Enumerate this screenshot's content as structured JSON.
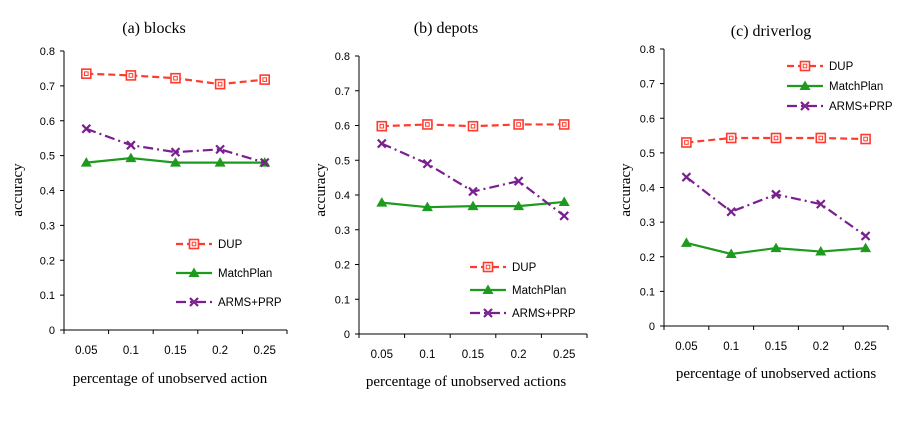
{
  "colors": {
    "DUP": "#ff3b2f",
    "MatchPlan": "#1e9a1e",
    "ARMS+PRP": "#7a1f8f",
    "axis": "#000000"
  },
  "chart_data": [
    {
      "type": "line",
      "title": "(a) blocks",
      "xlabel": "percentage of unobserved action",
      "ylabel": "accuracy",
      "categories": [
        "0.05",
        "0.1",
        "0.15",
        "0.2",
        "0.25"
      ],
      "ylim": [
        0,
        0.8
      ],
      "yticks": [
        "0",
        "0.1",
        "0.2",
        "0.3",
        "0.4",
        "0.5",
        "0.6",
        "0.7",
        "0.8"
      ],
      "legend_position": "bottom-right",
      "series": [
        {
          "name": "DUP",
          "values": [
            0.735,
            0.73,
            0.722,
            0.705,
            0.718
          ]
        },
        {
          "name": "MatchPlan",
          "values": [
            0.48,
            0.493,
            0.48,
            0.48,
            0.48
          ]
        },
        {
          "name": "ARMS+PRP",
          "values": [
            0.577,
            0.53,
            0.51,
            0.518,
            0.48
          ]
        }
      ]
    },
    {
      "type": "line",
      "title": "(b) depots",
      "xlabel": "percentage of unobserved actions",
      "ylabel": "accuracy",
      "categories": [
        "0.05",
        "0.1",
        "0.15",
        "0.2",
        "0.25"
      ],
      "ylim": [
        0,
        0.8
      ],
      "yticks": [
        "0",
        "0.1",
        "0.2",
        "0.3",
        "0.4",
        "0.5",
        "0.6",
        "0.7",
        "0.8"
      ],
      "legend_position": "bottom-right",
      "series": [
        {
          "name": "DUP",
          "values": [
            0.598,
            0.603,
            0.598,
            0.603,
            0.603
          ]
        },
        {
          "name": "MatchPlan",
          "values": [
            0.378,
            0.365,
            0.368,
            0.368,
            0.38
          ]
        },
        {
          "name": "ARMS+PRP",
          "values": [
            0.548,
            0.49,
            0.41,
            0.44,
            0.34
          ]
        }
      ]
    },
    {
      "type": "line",
      "title": "(c) driverlog",
      "xlabel": "percentage of unobserved actions",
      "ylabel": "accuracy",
      "categories": [
        "0.05",
        "0.1",
        "0.15",
        "0.2",
        "0.25"
      ],
      "ylim": [
        0,
        0.8
      ],
      "yticks": [
        "0",
        "0.1",
        "0.2",
        "0.3",
        "0.4",
        "0.5",
        "0.6",
        "0.7",
        "0.8"
      ],
      "legend_position": "top-right",
      "series": [
        {
          "name": "DUP",
          "values": [
            0.53,
            0.543,
            0.543,
            0.543,
            0.54
          ]
        },
        {
          "name": "MatchPlan",
          "values": [
            0.24,
            0.208,
            0.225,
            0.215,
            0.225
          ]
        },
        {
          "name": "ARMS+PRP",
          "values": [
            0.43,
            0.33,
            0.38,
            0.352,
            0.26
          ]
        }
      ]
    }
  ]
}
